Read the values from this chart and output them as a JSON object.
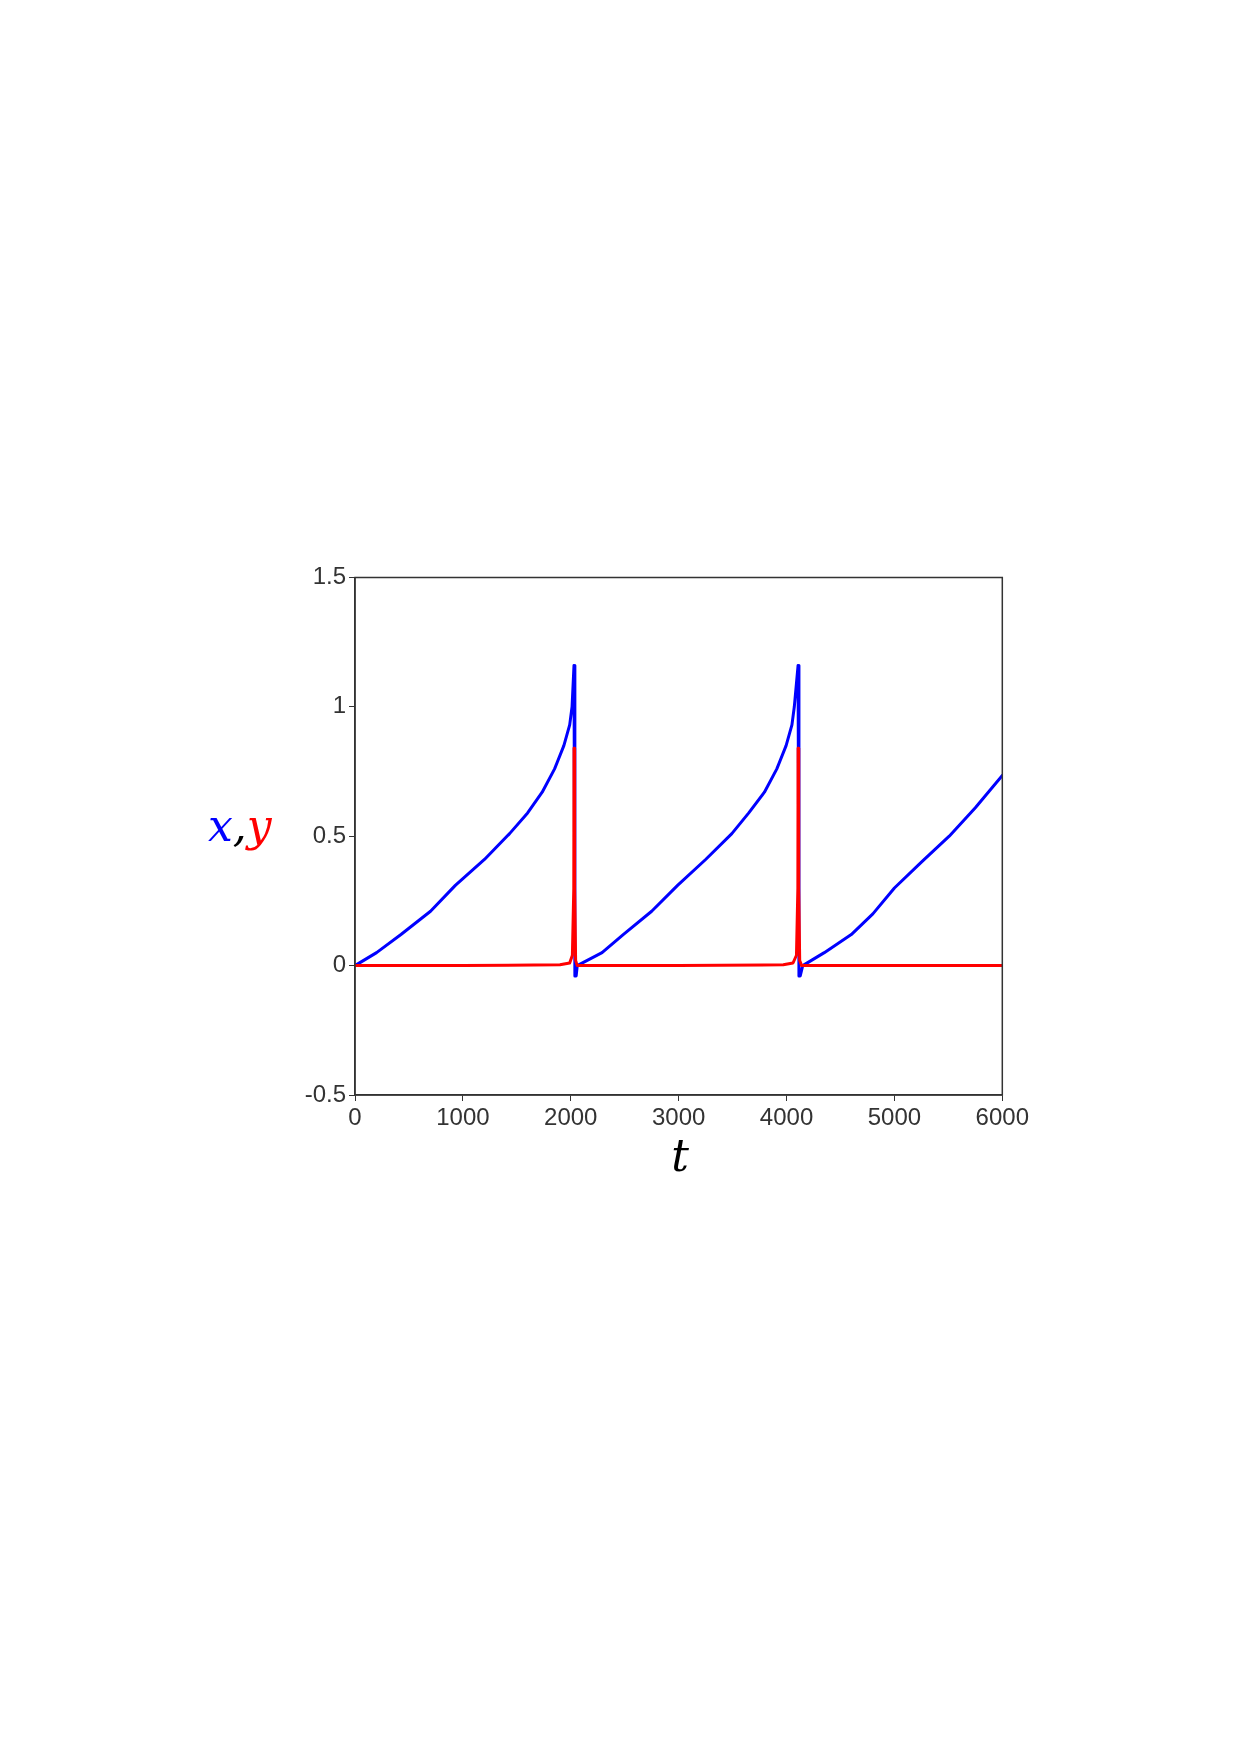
{
  "chart_data": {
    "type": "line",
    "xlabel": "t",
    "ylabel": "x,y",
    "xlim": [
      0,
      6000
    ],
    "xticks": [
      0,
      1000,
      2000,
      3000,
      4000,
      5000,
      6000
    ],
    "ylim": [
      -0.5,
      1.5
    ],
    "yticks": [
      -0.5,
      0,
      0.5,
      1,
      1.5
    ],
    "legend": false,
    "marker": "none",
    "line_style": "solid",
    "series": [
      {
        "color": "#0000ff",
        "x": [
          0,
          200,
          426,
          700,
          930,
          1200,
          1433,
          1600,
          1735,
          1850,
          1936,
          1990,
          2012,
          2030,
          2038,
          2050,
          2060,
          2290,
          2486,
          2750,
          2990,
          3250,
          3493,
          3650,
          3795,
          3910,
          3996,
          4050,
          4072,
          4107,
          4115,
          4127,
          4150,
          4350,
          4600,
          4800,
          5000,
          5250,
          5508,
          5750,
          6000
        ],
        "values": [
          0,
          0.05,
          0.12,
          0.21,
          0.31,
          0.41,
          0.51,
          0.59,
          0.67,
          0.76,
          0.85,
          0.93,
          1.0,
          1.16,
          -0.04,
          -0.04,
          0,
          0.05,
          0.12,
          0.21,
          0.31,
          0.41,
          0.51,
          0.59,
          0.67,
          0.76,
          0.85,
          0.93,
          1.0,
          1.16,
          -0.04,
          -0.04,
          0,
          0.05,
          0.12,
          0.2,
          0.3,
          0.4,
          0.5,
          0.61,
          0.735
        ]
      },
      {
        "color": "#ff0000",
        "x": [
          0,
          1000,
          1900,
          1990,
          2015,
          2028,
          2030,
          2036,
          2045,
          2060,
          3000,
          3970,
          4060,
          4092,
          4105,
          4107,
          4113,
          4122,
          4140,
          5000,
          6000
        ],
        "values": [
          0,
          0,
          0.003,
          0.01,
          0.04,
          0.3,
          0.84,
          0.3,
          0.02,
          0,
          0,
          0.003,
          0.01,
          0.04,
          0.3,
          0.84,
          0.3,
          0.02,
          0,
          0,
          0
        ]
      }
    ]
  }
}
